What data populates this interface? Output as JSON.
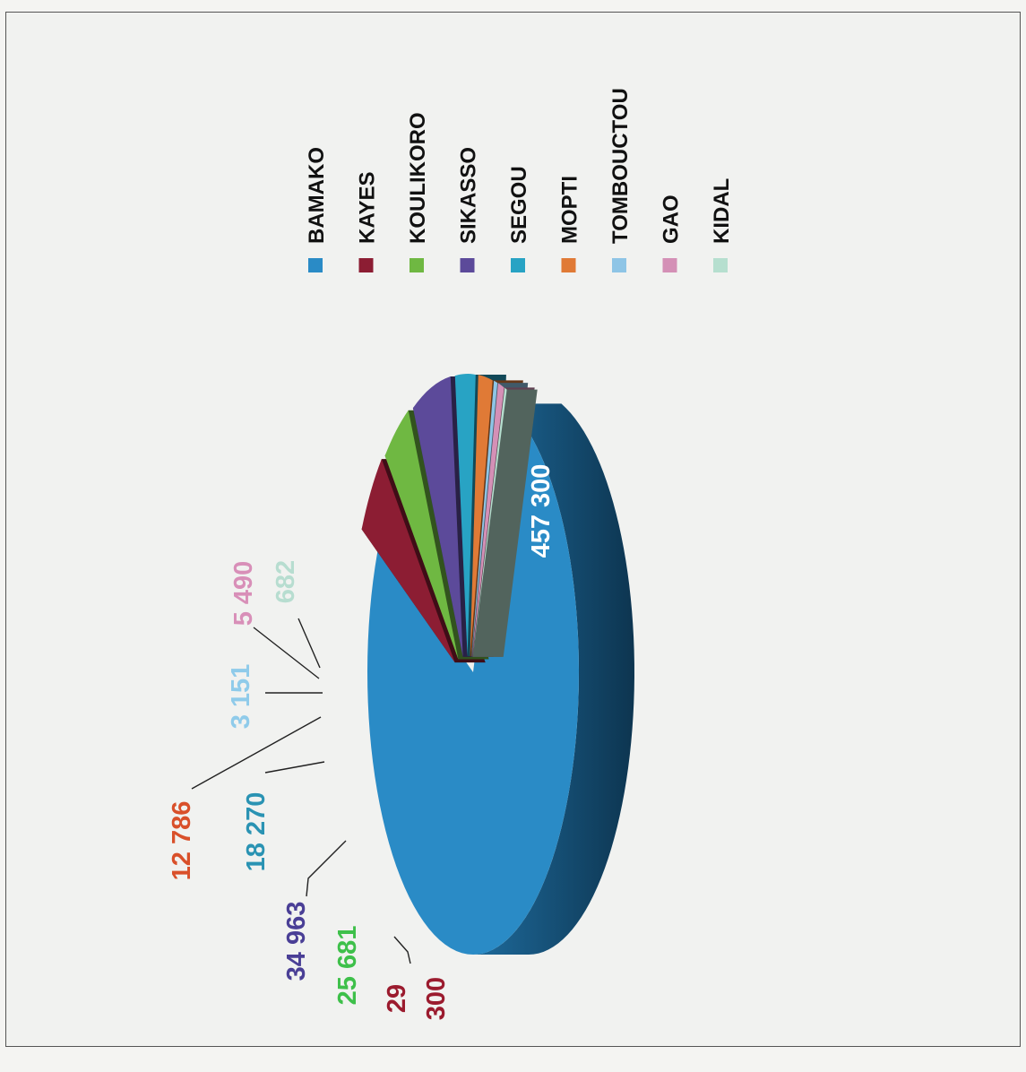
{
  "chart_data": {
    "type": "pie",
    "style": "3d-exploded",
    "orientation": "rotated-90-clockwise",
    "legend_position": "right",
    "slices": [
      {
        "name": "BAMAKO",
        "value": 457300,
        "label": "457 300",
        "color": "#2a8bc6",
        "label_color": "#ffffff"
      },
      {
        "name": "KAYES",
        "value": 29300,
        "label_parts": [
          "29",
          "300"
        ],
        "color": "#8c1d33",
        "label_color": "#9b1b2e"
      },
      {
        "name": "KOULIKORO",
        "value": 25681,
        "label": "25 681",
        "color": "#6fb842",
        "label_color": "#3ec04a"
      },
      {
        "name": "SIKASSO",
        "value": 34963,
        "label": "34 963",
        "color": "#5c4a9a",
        "label_color": "#4a3f96"
      },
      {
        "name": "SEGOU",
        "value": 18270,
        "label": "18 270",
        "color": "#28a3c4",
        "label_color": "#2a93b3"
      },
      {
        "name": "MOPTI",
        "value": 12786,
        "label": "12 786",
        "color": "#e07a36",
        "label_color": "#d9502a"
      },
      {
        "name": "TOMBOUCTOU",
        "value": 3151,
        "label": "3 151",
        "color": "#8ec5e6",
        "label_color": "#8fcbea"
      },
      {
        "name": "GAO",
        "value": 5490,
        "label": "5 490",
        "color": "#d490b6",
        "label_color": "#d88fb8"
      },
      {
        "name": "KIDAL",
        "value": 682,
        "label": "682",
        "color": "#b6dfcf",
        "label_color": "#b7ddd0"
      }
    ]
  }
}
